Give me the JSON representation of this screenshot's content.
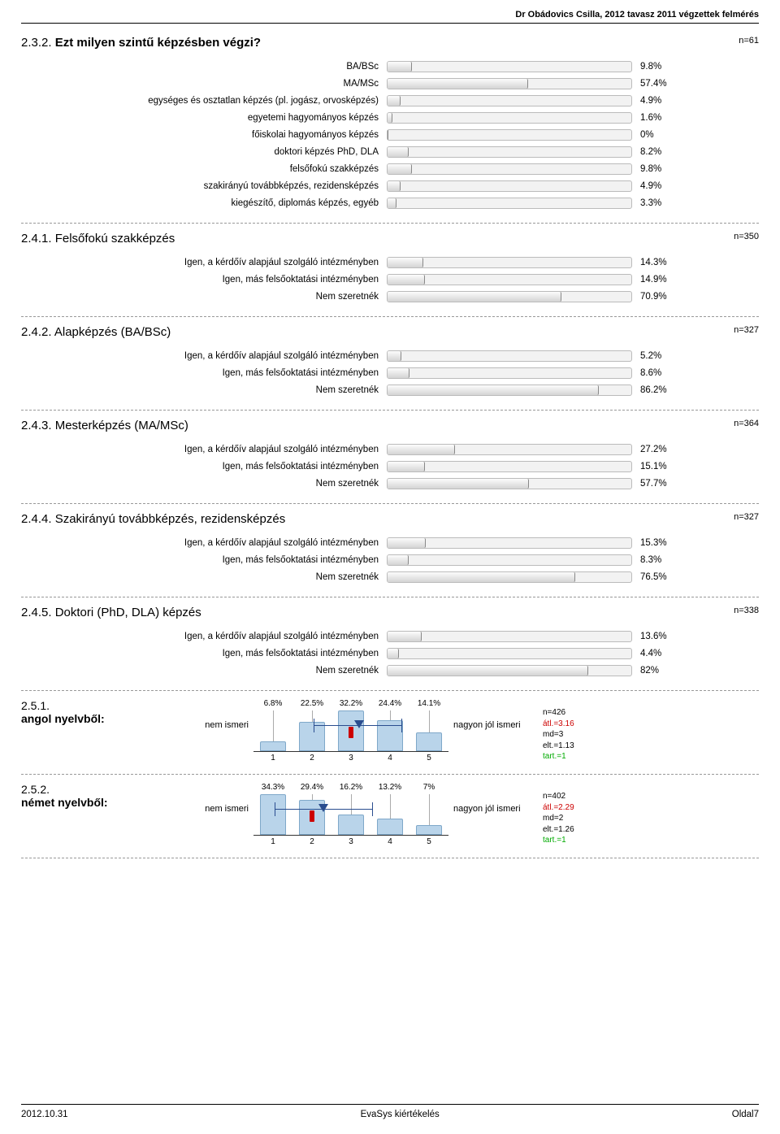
{
  "header": "Dr Obádovics Csilla, 2012 tavasz 2011 végzettek felmérés",
  "footer": {
    "left": "2012.10.31",
    "center": "EvaSys kiértékelés",
    "right": "Oldal7"
  },
  "q232": {
    "title_num": "2.3.2.",
    "title_text": "Ezt milyen szintű képzésben végzi?",
    "n": "n=61",
    "items": [
      {
        "label": "BA/BSc",
        "pct": 9.8
      },
      {
        "label": "MA/MSc",
        "pct": 57.4
      },
      {
        "label": "egységes és osztatlan képzés (pl. jogász, orvosképzés)",
        "pct": 4.9
      },
      {
        "label": "egyetemi hagyományos képzés",
        "pct": 1.6
      },
      {
        "label": "főiskolai hagyományos képzés",
        "pct": 0
      },
      {
        "label": "doktori képzés PhD, DLA",
        "pct": 8.2
      },
      {
        "label": "felsőfokú szakképzés",
        "pct": 9.8
      },
      {
        "label": "szakirányú továbbképzés, rezidensképzés",
        "pct": 4.9
      },
      {
        "label": "kiegészítő, diplomás képzés, egyéb",
        "pct": 3.3
      }
    ]
  },
  "std_labels": {
    "a": "Igen, a kérdőív alapjául szolgáló intézményben",
    "b": "Igen, más felsőoktatási intézményben",
    "c": "Nem szeretnék"
  },
  "q241": {
    "title": "2.4.1. Felsőfokú szakképzés",
    "n": "n=350",
    "items": [
      {
        "k": "a",
        "pct": 14.3
      },
      {
        "k": "b",
        "pct": 14.9
      },
      {
        "k": "c",
        "pct": 70.9
      }
    ]
  },
  "q242": {
    "title": "2.4.2. Alapképzés (BA/BSc)",
    "n": "n=327",
    "items": [
      {
        "k": "a",
        "pct": 5.2
      },
      {
        "k": "b",
        "pct": 8.6
      },
      {
        "k": "c",
        "pct": 86.2
      }
    ]
  },
  "q243": {
    "title": "2.4.3. Mesterképzés (MA/MSc)",
    "n": "n=364",
    "items": [
      {
        "k": "a",
        "pct": 27.2
      },
      {
        "k": "b",
        "pct": 15.1
      },
      {
        "k": "c",
        "pct": 57.7
      }
    ]
  },
  "q244": {
    "title": "2.4.4. Szakirányú továbbképzés, rezidensképzés",
    "n": "n=327",
    "items": [
      {
        "k": "a",
        "pct": 15.3
      },
      {
        "k": "b",
        "pct": 8.3
      },
      {
        "k": "c",
        "pct": 76.5
      }
    ]
  },
  "q245": {
    "title": "2.4.5. Doktori (PhD, DLA) képzés",
    "n": "n=338",
    "items": [
      {
        "k": "a",
        "pct": 13.6
      },
      {
        "k": "b",
        "pct": 4.4
      },
      {
        "k": "c",
        "pct": 82
      }
    ]
  },
  "q251": {
    "title_num": "2.5.1.",
    "title_text": "angol nyelvből:",
    "left": "nem ismeri",
    "right": "nagyon jól ismeri",
    "pcts": [
      6.8,
      22.5,
      32.2,
      24.4,
      14.1
    ],
    "axis": [
      1,
      2,
      3,
      4,
      5
    ],
    "mean_pos_pct": 54,
    "median_pos_pct": 50,
    "err_lo_pct": 31,
    "err_hi_pct": 76,
    "stats": {
      "n": "n=426",
      "atl": "átl.=3.16",
      "md": "md=3",
      "elt": "elt.=1.13",
      "tart": "tart.=1"
    }
  },
  "q252": {
    "title_num": "2.5.2.",
    "title_text": "német nyelvből:",
    "left": "nem ismeri",
    "right": "nagyon jól ismeri",
    "pcts": [
      34.3,
      29.4,
      16.2,
      13.2,
      7
    ],
    "axis": [
      1,
      2,
      3,
      4,
      5
    ],
    "mean_pos_pct": 36,
    "median_pos_pct": 30,
    "err_lo_pct": 11,
    "err_hi_pct": 61,
    "stats": {
      "n": "n=402",
      "atl": "átl.=2.29",
      "md": "md=2",
      "elt": "elt.=1.26",
      "tart": "tart.=1"
    }
  },
  "colors": {
    "bar_grad_top": "#fcfcfc",
    "bar_grad_bot": "#d4d4d4",
    "hist_fill": "#b9d4ea",
    "hist_border": "#7fa8c9",
    "mean_blue": "#2a4d8f",
    "median_red": "#c00"
  }
}
